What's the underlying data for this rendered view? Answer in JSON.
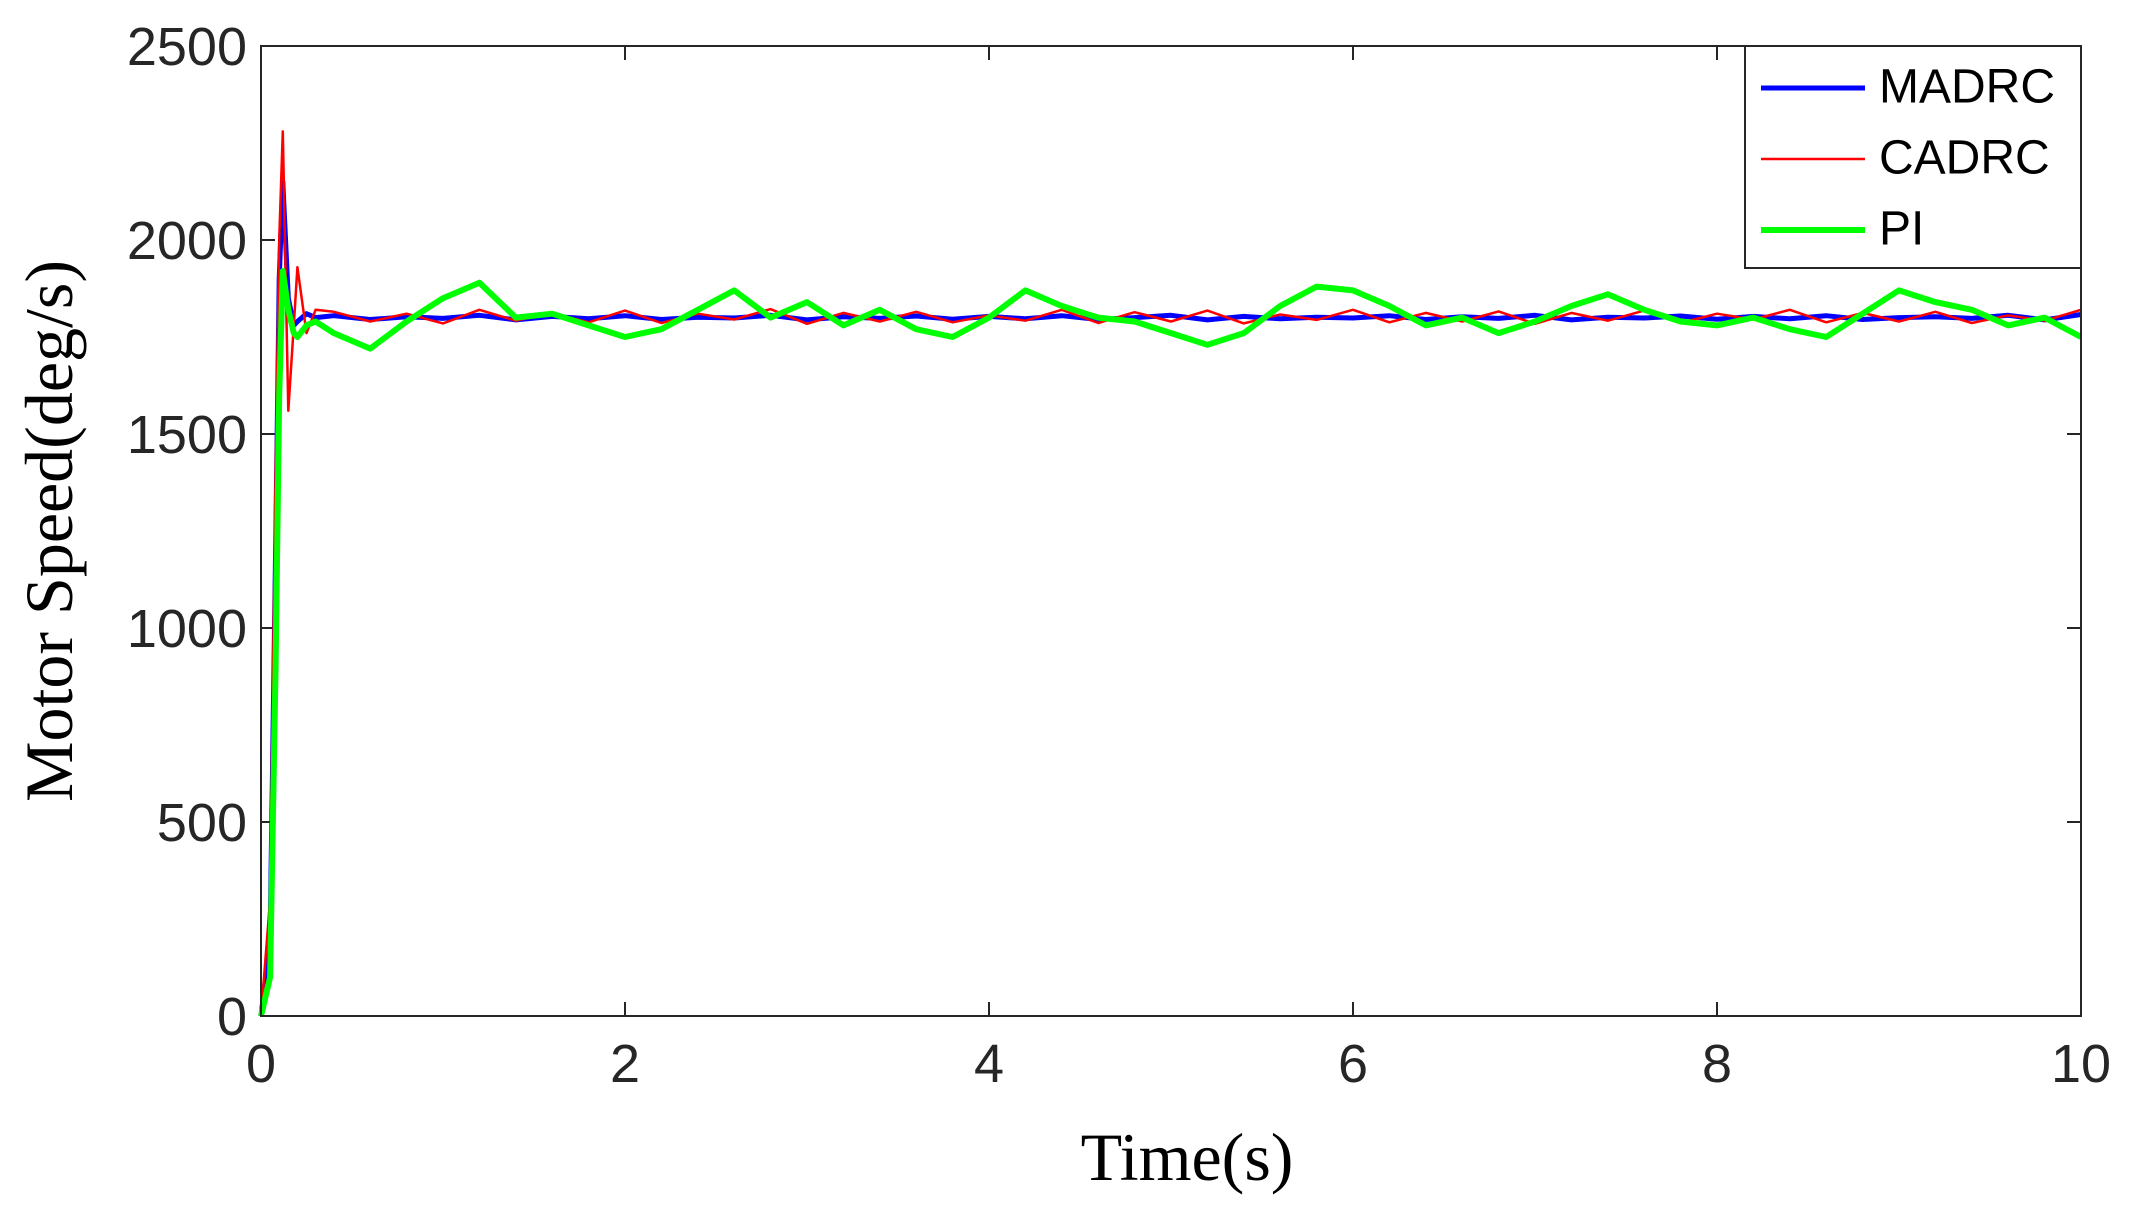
{
  "chart_data": {
    "type": "line",
    "xlabel": "Time(s)",
    "ylabel": "Motor Speed(deg/s)",
    "xlim": [
      0,
      10
    ],
    "ylim": [
      0,
      2500
    ],
    "xticks": [
      0,
      2,
      4,
      6,
      8,
      10
    ],
    "yticks": [
      0,
      500,
      1000,
      1500,
      2000,
      2500
    ],
    "legend": "upper right",
    "x": [
      0,
      0.05,
      0.08,
      0.1,
      0.12,
      0.15,
      0.18,
      0.2,
      0.25,
      0.3,
      0.4,
      0.6,
      0.8,
      1.0,
      1.2,
      1.4,
      1.6,
      1.8,
      2.0,
      2.2,
      2.4,
      2.6,
      2.8,
      3.0,
      3.2,
      3.4,
      3.6,
      3.8,
      4.0,
      4.2,
      4.4,
      4.6,
      4.8,
      5.0,
      5.2,
      5.4,
      5.6,
      5.8,
      6.0,
      6.2,
      6.4,
      6.6,
      6.8,
      7.0,
      7.2,
      7.4,
      7.6,
      7.8,
      8.0,
      8.2,
      8.4,
      8.6,
      8.8,
      9.0,
      9.2,
      9.4,
      9.6,
      9.8,
      10.0
    ],
    "series": [
      {
        "name": "MADRC",
        "color": "#0000ff",
        "width": 5,
        "values": [
          0,
          200,
          1200,
          1900,
          2150,
          1850,
          1780,
          1790,
          1810,
          1800,
          1805,
          1795,
          1802,
          1798,
          1806,
          1794,
          1803,
          1797,
          1805,
          1795,
          1801,
          1799,
          1806,
          1794,
          1802,
          1798,
          1804,
          1796,
          1803,
          1797,
          1805,
          1795,
          1800,
          1806,
          1794,
          1803,
          1797,
          1801,
          1799,
          1805,
          1795,
          1802,
          1798,
          1806,
          1794,
          1801,
          1799,
          1804,
          1796,
          1803,
          1797,
          1805,
          1795,
          1800,
          1802,
          1798,
          1806,
          1794,
          1808
        ]
      },
      {
        "name": "CADRC",
        "color": "#ff0000",
        "width": 2.5,
        "values": [
          0,
          300,
          1400,
          2000,
          2280,
          1560,
          1780,
          1930,
          1760,
          1820,
          1815,
          1790,
          1810,
          1785,
          1820,
          1792,
          1812,
          1788,
          1818,
          1786,
          1810,
          1795,
          1822,
          1784,
          1812,
          1790,
          1815,
          1788,
          1806,
          1792,
          1820,
          1786,
          1814,
          1790,
          1818,
          1785,
          1808,
          1794,
          1820,
          1788,
          1812,
          1790,
          1816,
          1784,
          1812,
          1792,
          1818,
          1786,
          1810,
          1795,
          1820,
          1788,
          1812,
          1790,
          1815,
          1786,
          1806,
          1792,
          1820
        ]
      },
      {
        "name": "PI",
        "color": "#00ff00",
        "width": 6,
        "values": [
          0,
          100,
          900,
          1600,
          1920,
          1820,
          1760,
          1750,
          1780,
          1790,
          1760,
          1720,
          1790,
          1850,
          1890,
          1800,
          1810,
          1780,
          1750,
          1770,
          1820,
          1870,
          1800,
          1840,
          1780,
          1820,
          1770,
          1750,
          1800,
          1870,
          1830,
          1800,
          1790,
          1760,
          1730,
          1760,
          1830,
          1880,
          1870,
          1830,
          1780,
          1800,
          1760,
          1790,
          1830,
          1860,
          1820,
          1790,
          1780,
          1800,
          1770,
          1750,
          1810,
          1870,
          1840,
          1820,
          1780,
          1800,
          1750
        ]
      }
    ]
  }
}
